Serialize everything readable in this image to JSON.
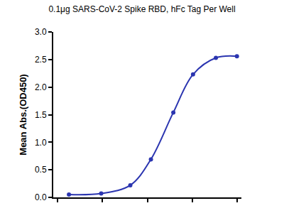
{
  "chart_data": {
    "type": "line",
    "title": "0.1μg SARS-CoV-2 Spike RBD, hFc Tag Per Well",
    "y_label": "Mean Abs.(OD450)",
    "x": [
      -3.75,
      -3.03,
      -2.38,
      -1.92,
      -1.42,
      -0.98,
      -0.47,
      0.0
    ],
    "values": [
      0.05,
      0.07,
      0.22,
      0.69,
      1.54,
      2.23,
      2.53,
      2.56
    ],
    "color": "#2b35b0",
    "marker": "circle",
    "line_style": "solid",
    "xlim": [
      -4.1,
      0.1
    ],
    "xticks": [
      -4,
      -3,
      -2,
      -1,
      0
    ],
    "ylim": [
      0,
      3
    ],
    "yticks": [
      {
        "value": 0,
        "label": "0.0"
      },
      {
        "value": 0.5,
        "label": "0.5"
      },
      {
        "value": 1,
        "label": "1.0"
      },
      {
        "value": 1.5,
        "label": "1.5"
      },
      {
        "value": 2,
        "label": "2.0"
      },
      {
        "value": 2.5,
        "label": "2.5"
      },
      {
        "value": 3,
        "label": "3.0"
      }
    ],
    "grid": false,
    "tick_labels": "y"
  }
}
